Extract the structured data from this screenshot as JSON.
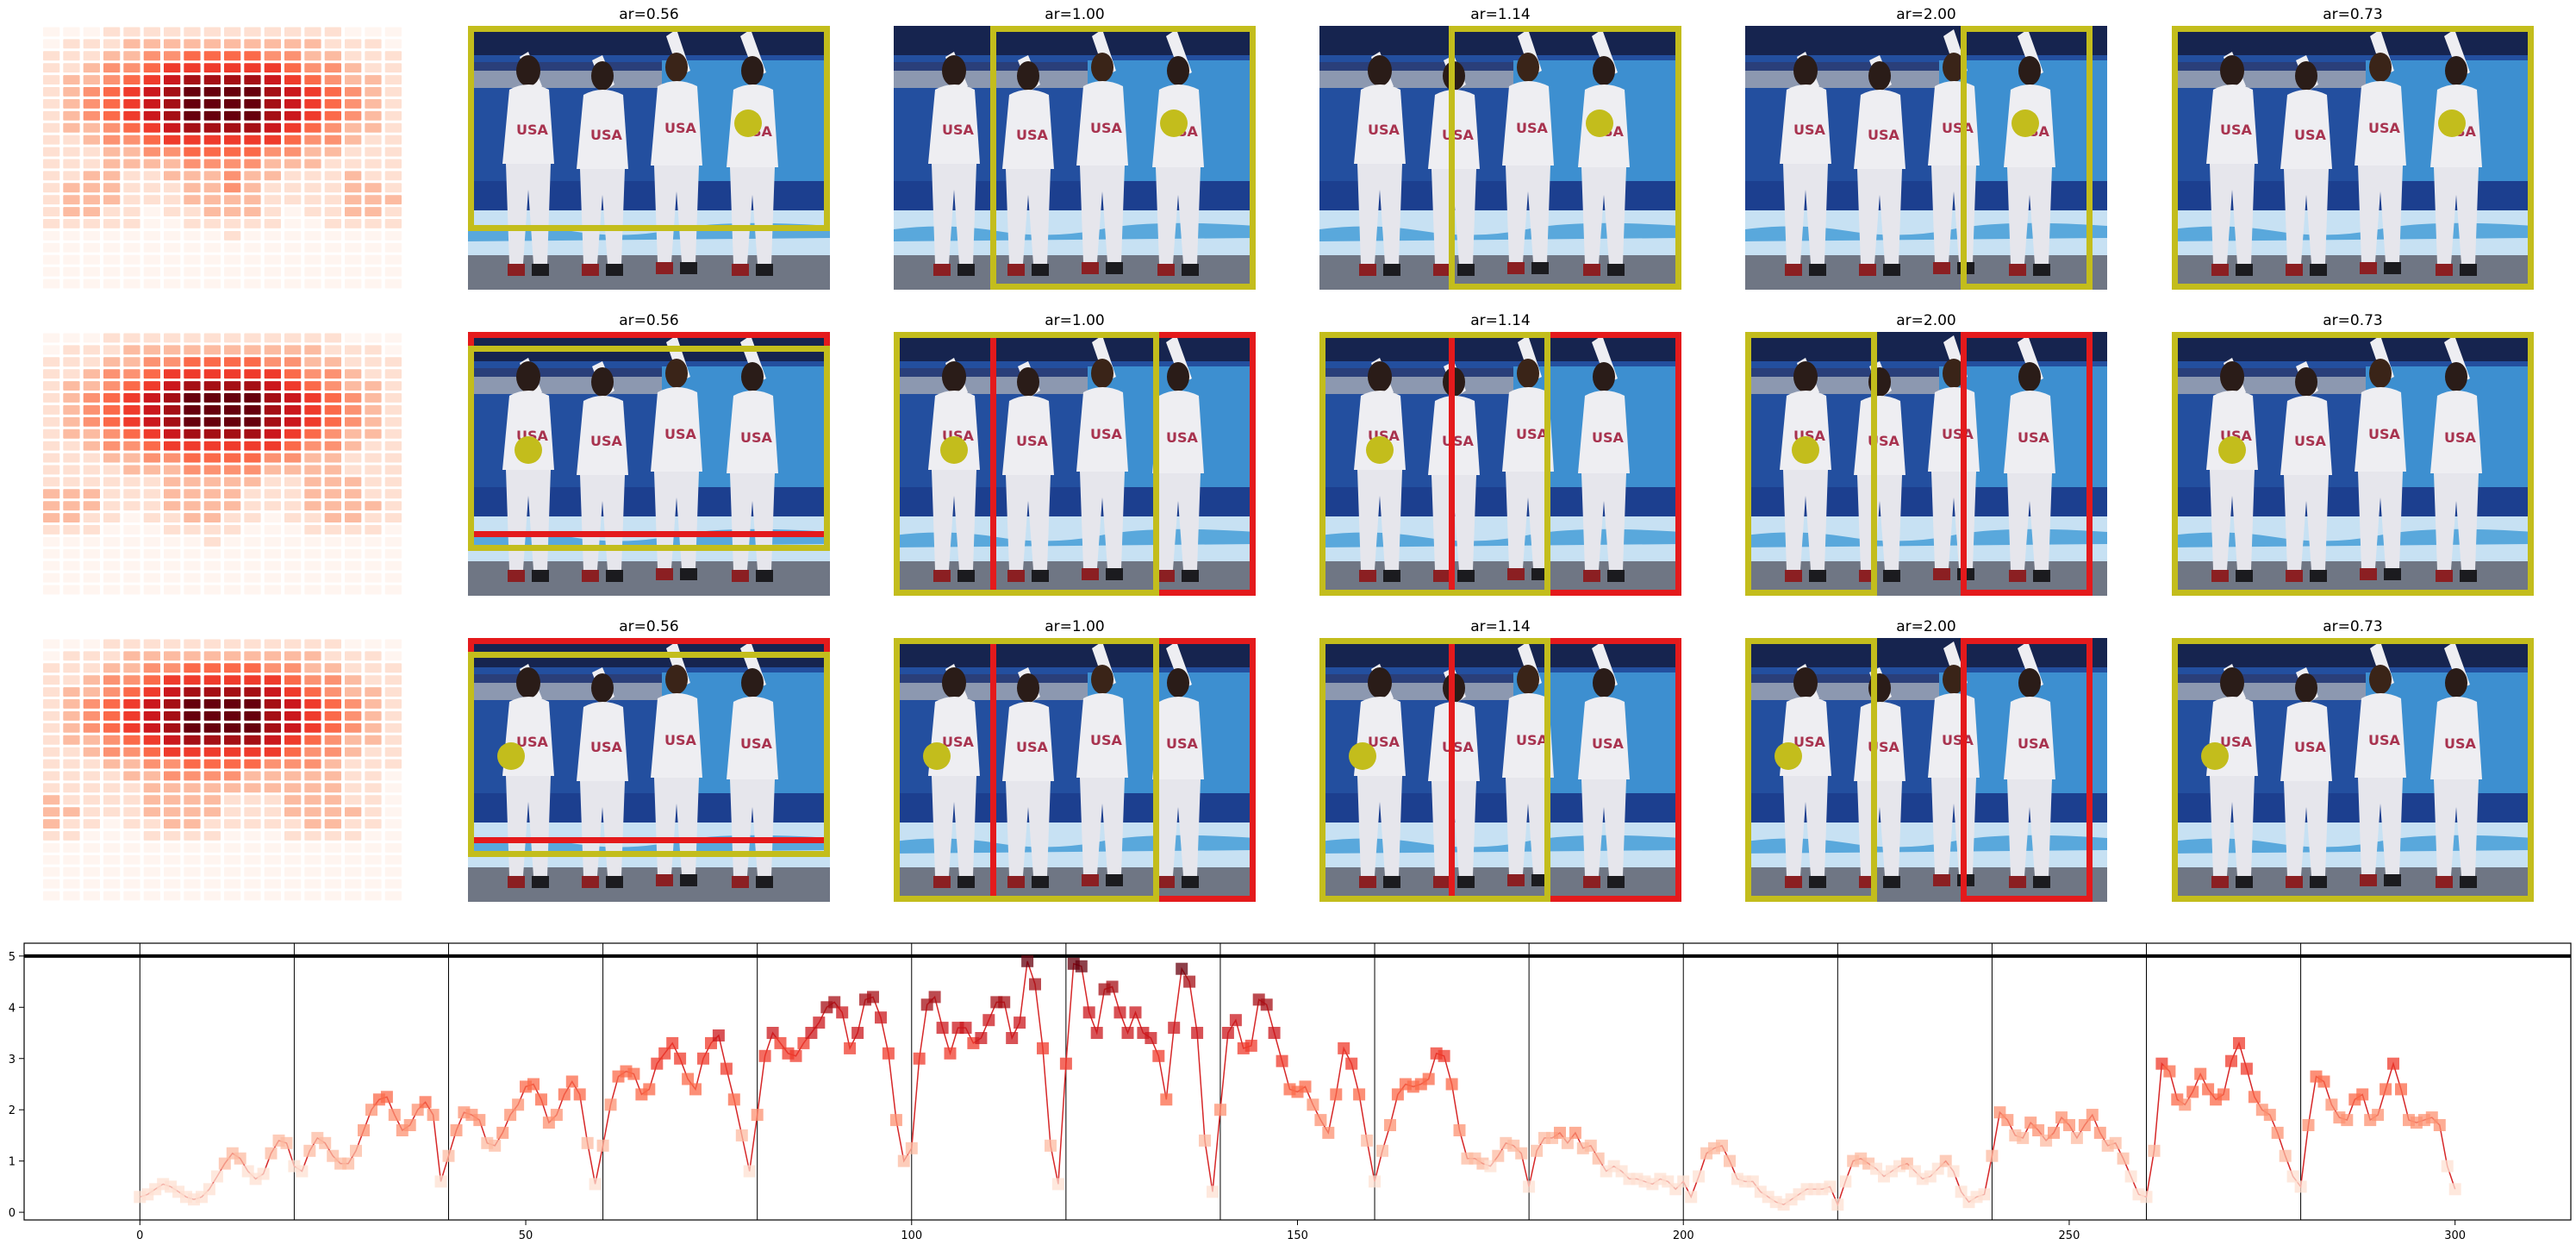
{
  "panel_titles": [
    "ar=0.56",
    "ar=1.00",
    "ar=1.14",
    "ar=2.00",
    "ar=0.73"
  ],
  "photo": {
    "jersey_text": "USA",
    "colors": {
      "wall_dark": "#16244f",
      "wall_blue": "#234f9f",
      "wall_light": "#3d8fd0",
      "floor_light": "#c7e1f3",
      "floor_grey": "#6f7684",
      "suit": "#eeeef2",
      "jersey_text": "#a8334f",
      "yellow": "#c3bd1c",
      "red": "#e41a1c"
    }
  },
  "heatmap_colors": [
    "#fff5f0",
    "#fee0d2",
    "#fcbba1",
    "#fc9272",
    "#fb6a4a",
    "#ef3b2c",
    "#cb181d",
    "#a50f15",
    "#67000d"
  ],
  "chart_data": {
    "type": "line",
    "xlim": [
      -15,
      315
    ],
    "ylim": [
      -0.15,
      5.25
    ],
    "x_ticks": [
      0,
      50,
      100,
      150,
      200,
      250,
      300
    ],
    "y_ticks": [
      0,
      1,
      2,
      3,
      4,
      5
    ],
    "hline_y": 5,
    "vlines": [
      0,
      20,
      40,
      60,
      80,
      100,
      120,
      140,
      160,
      180,
      200,
      220,
      240,
      260,
      280
    ],
    "grid": false,
    "series": [
      {
        "values": [
          0.3,
          0.35,
          0.45,
          0.55,
          0.5,
          0.4,
          0.3,
          0.25,
          0.3,
          0.45,
          0.7,
          0.95,
          1.15,
          1.05,
          0.8,
          0.65,
          0.75,
          1.15,
          1.4,
          1.35,
          0.9,
          0.8,
          1.2,
          1.45,
          1.35,
          1.1,
          0.95,
          0.95,
          1.2,
          1.6,
          2.0,
          2.2,
          2.25,
          1.9,
          1.6,
          1.7,
          2.0,
          2.15,
          1.9,
          0.6,
          1.1,
          1.6,
          1.95,
          1.9,
          1.8,
          1.35,
          1.3,
          1.55,
          1.9,
          2.1,
          2.45,
          2.5,
          2.2,
          1.75,
          1.9,
          2.3,
          2.55,
          2.3,
          1.35,
          0.55,
          1.3,
          2.1,
          2.65,
          2.75,
          2.7,
          2.3,
          2.4,
          2.9,
          3.1,
          3.3,
          3.0,
          2.6,
          2.4,
          3.0,
          3.3,
          3.45,
          2.8,
          2.2,
          1.5,
          0.8,
          1.9,
          3.05,
          3.5,
          3.3,
          3.1,
          3.05,
          3.3,
          3.5,
          3.7,
          4.0,
          4.1,
          3.9,
          3.2,
          3.5,
          4.15,
          4.2,
          3.8,
          3.1,
          1.8,
          1.0,
          1.25,
          3.0,
          4.05,
          4.2,
          3.6,
          3.1,
          3.6,
          3.6,
          3.3,
          3.4,
          3.75,
          4.1,
          4.1,
          3.4,
          3.7,
          4.9,
          4.45,
          3.2,
          1.3,
          0.55,
          2.9,
          4.85,
          4.8,
          3.9,
          3.5,
          4.35,
          4.4,
          3.9,
          3.5,
          3.9,
          3.5,
          3.4,
          3.05,
          2.2,
          3.6,
          4.75,
          4.5,
          3.5,
          1.4,
          0.4,
          2.0,
          3.5,
          3.75,
          3.2,
          3.25,
          4.15,
          4.05,
          3.5,
          2.95,
          2.4,
          2.35,
          2.45,
          2.1,
          1.8,
          1.55,
          2.3,
          3.2,
          2.9,
          2.3,
          1.4,
          0.6,
          1.2,
          1.7,
          2.3,
          2.5,
          2.45,
          2.5,
          2.6,
          3.1,
          3.05,
          2.5,
          1.6,
          1.05,
          1.05,
          0.95,
          0.9,
          1.1,
          1.35,
          1.3,
          1.15,
          0.5,
          1.2,
          1.45,
          1.45,
          1.55,
          1.35,
          1.55,
          1.25,
          1.3,
          1.05,
          0.8,
          0.9,
          0.8,
          0.65,
          0.65,
          0.6,
          0.55,
          0.65,
          0.6,
          0.45,
          0.6,
          0.3,
          0.7,
          1.15,
          1.25,
          1.3,
          1.0,
          0.65,
          0.6,
          0.6,
          0.4,
          0.3,
          0.2,
          0.15,
          0.25,
          0.35,
          0.45,
          0.45,
          0.45,
          0.5,
          0.15,
          0.6,
          1.0,
          1.05,
          0.95,
          0.85,
          0.7,
          0.8,
          0.9,
          0.95,
          0.8,
          0.65,
          0.7,
          0.85,
          1.0,
          0.8,
          0.4,
          0.2,
          0.3,
          0.35,
          1.1,
          1.95,
          1.8,
          1.5,
          1.45,
          1.75,
          1.6,
          1.4,
          1.55,
          1.85,
          1.7,
          1.45,
          1.7,
          1.9,
          1.55,
          1.3,
          1.35,
          1.05,
          0.7,
          0.35,
          0.3,
          1.2,
          2.9,
          2.75,
          2.2,
          2.1,
          2.35,
          2.7,
          2.4,
          2.2,
          2.3,
          2.95,
          3.3,
          2.8,
          2.25,
          2.0,
          1.9,
          1.55,
          1.1,
          0.7,
          0.5,
          1.7,
          2.65,
          2.55,
          2.1,
          1.85,
          1.8,
          2.2,
          2.3,
          1.8,
          1.9,
          2.4,
          2.9,
          2.4,
          1.8,
          1.75,
          1.8,
          1.85,
          1.7,
          0.9,
          0.45
        ]
      }
    ]
  }
}
